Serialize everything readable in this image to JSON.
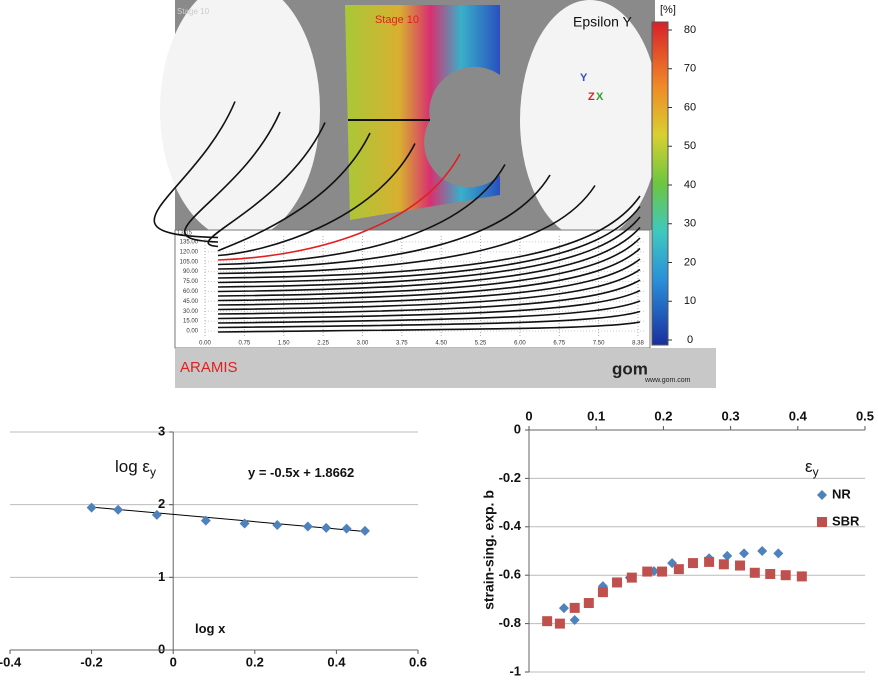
{
  "screenshot": {
    "corner_label": "Stage 10",
    "stage_label": "Stage 10",
    "quantity": "Epsilon Y",
    "unit": "[%]",
    "colorbar_ticks": [
      0,
      10,
      20,
      30,
      40,
      50,
      60,
      70,
      80
    ],
    "axes_triad": [
      "Y",
      "Z",
      "X"
    ],
    "plot": {
      "corner_label": "13.15",
      "yticks": [
        "0.00",
        "15.00",
        "30.00",
        "45.00",
        "60.00",
        "75.00",
        "90.00",
        "105.00",
        "120.00",
        "135.00"
      ],
      "xticks": [
        "0.00",
        "0.75",
        "1.50",
        "2.25",
        "3.00",
        "3.75",
        "4.50",
        "5.25",
        "6.00",
        "6.75",
        "7.50",
        "8.38"
      ]
    },
    "brand": "ARAMIS",
    "logo": "gom",
    "url": "www.gom.com"
  },
  "chart_data": [
    {
      "type": "scatter",
      "xlim": [
        -0.4,
        0.6
      ],
      "xticks": [
        -0.4,
        -0.2,
        0,
        0.2,
        0.4,
        0.6
      ],
      "ylim": [
        0,
        3
      ],
      "yticks": [
        0,
        1,
        2,
        3
      ],
      "grid": true,
      "series": [
        {
          "color": "#4f81bd",
          "marker": "diamond",
          "x": [
            -0.2,
            -0.135,
            -0.04,
            0.08,
            0.175,
            0.255,
            0.33,
            0.375,
            0.425,
            0.47
          ],
          "values": [
            1.96,
            1.93,
            1.86,
            1.78,
            1.74,
            1.72,
            1.7,
            1.68,
            1.67,
            1.64
          ]
        }
      ],
      "trendline": {
        "slope": -0.5,
        "intercept": 1.8662,
        "color": "#000000"
      },
      "annotations": [
        {
          "text": "log ε",
          "subscript": "y"
        },
        {
          "text": "y = -0.5x + 1.8662"
        },
        {
          "text": "log x"
        }
      ]
    },
    {
      "type": "scatter",
      "xlim": [
        0,
        0.5
      ],
      "xticks": [
        0,
        0.1,
        0.2,
        0.3,
        0.4,
        0.5
      ],
      "ylim": [
        -1,
        0
      ],
      "yticks": [
        -1,
        -0.8,
        -0.6,
        -0.4,
        -0.2,
        0
      ],
      "grid": true,
      "y_label": "strain-sing. exp. b",
      "legend": "right",
      "series": [
        {
          "name": "NR",
          "color": "#4f81bd",
          "marker": "diamond",
          "x": [
            0.052,
            0.068,
            0.11,
            0.15,
            0.186,
            0.213,
            0.268,
            0.295,
            0.32,
            0.347,
            0.371
          ],
          "values": [
            -0.736,
            -0.785,
            -0.645,
            -0.61,
            -0.583,
            -0.55,
            -0.53,
            -0.52,
            -0.51,
            -0.5,
            -0.51
          ]
        },
        {
          "name": "SBR",
          "color": "#c0504d",
          "marker": "square",
          "x": [
            0.027,
            0.046,
            0.068,
            0.089,
            0.11,
            0.131,
            0.153,
            0.176,
            0.198,
            0.223,
            0.244,
            0.268,
            0.29,
            0.314,
            0.336,
            0.359,
            0.382,
            0.406
          ],
          "values": [
            -0.79,
            -0.8,
            -0.735,
            -0.715,
            -0.67,
            -0.63,
            -0.61,
            -0.585,
            -0.585,
            -0.575,
            -0.55,
            -0.545,
            -0.555,
            -0.56,
            -0.59,
            -0.595,
            -0.6,
            -0.605
          ]
        }
      ],
      "annotations": [
        {
          "text": "ε",
          "subscript": "y"
        }
      ]
    }
  ]
}
